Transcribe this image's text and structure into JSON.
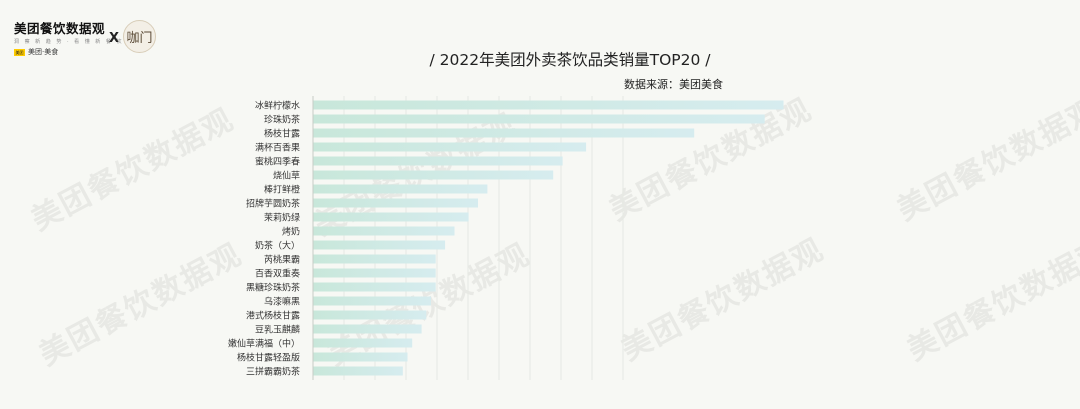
{
  "header": {
    "brand_title": "美团餐饮数据观",
    "brand_subtitle": "洞 察 新 趋 势 · 看 懂 新 餐 饮",
    "brand_logo_text": "美团·美食",
    "brand_logo_badge": "美团",
    "cross": "X",
    "partner_logo_text": "咖门"
  },
  "watermark": {
    "main": "美团餐饮数据观",
    "sub": "美团·美食"
  },
  "chart_data": {
    "type": "bar",
    "orientation": "horizontal",
    "title": "/ 2022年美团外卖茶饮品类销量TOP20 /",
    "source": "数据来源：美团美食",
    "categories": [
      "冰鲜柠檬水",
      "珍珠奶茶",
      "杨枝甘露",
      "满杯百香果",
      "蜜桃四季春",
      "烧仙草",
      "棒打鲜橙",
      "招牌芋圆奶茶",
      "茉莉奶绿",
      "烤奶",
      "奶茶（大）",
      "芮桃果霸",
      "百香双重奏",
      "黑糖珍珠奶茶",
      "乌漆嘛黑",
      "港式杨枝甘露",
      "豆乳玉麒麟",
      "嫩仙草满福（中）",
      "杨枝甘露轻盈版",
      "三拼霸霸奶茶"
    ],
    "values": [
      100,
      96,
      81,
      58,
      53,
      51,
      37,
      35,
      33,
      30,
      28,
      26,
      26,
      26,
      25,
      24,
      23,
      21,
      20,
      19
    ],
    "xlim": [
      0,
      100
    ],
    "x_tick_labels_shown": false,
    "grid": "vertical",
    "legend": "none",
    "colors": {
      "bar_left": "#c8e7da",
      "bar_right": "#d6ecef",
      "grid": "#e6e9e3",
      "axis": "#c7ccc6"
    }
  }
}
